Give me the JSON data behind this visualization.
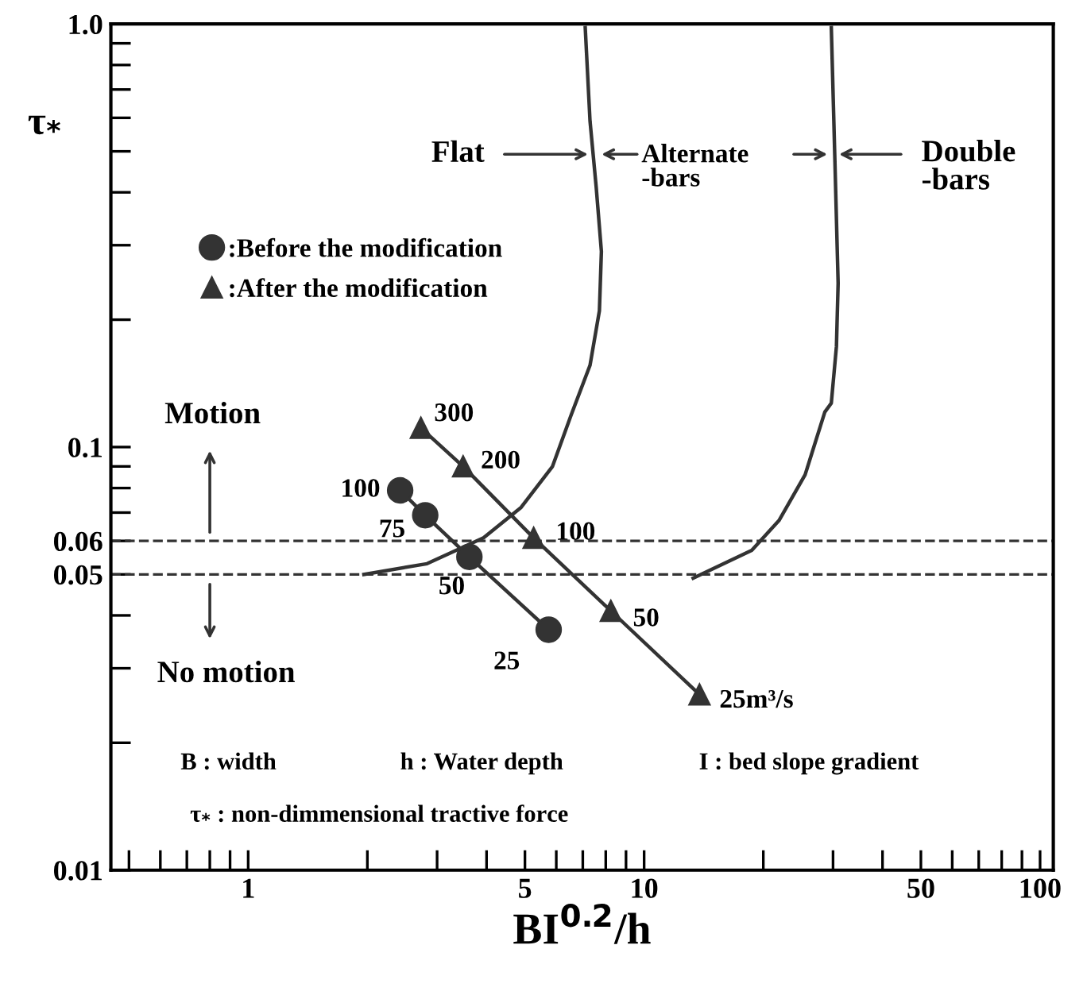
{
  "chart_data": {
    "type": "line",
    "xlabel": "BI$^{0.2}$/h",
    "ylabel": "τ$_{*}$",
    "log": "xy",
    "grid": false,
    "legend": "top left",
    "xlim": [
      0.45,
      108
    ],
    "ylim": [
      0.01,
      1.0
    ],
    "xticks": [
      {
        "value": 0.5,
        "label": null
      },
      {
        "value": 0.6,
        "label": null
      },
      {
        "value": 0.7,
        "label": null
      },
      {
        "value": 0.8,
        "label": null
      },
      {
        "value": 0.9,
        "label": null
      },
      1,
      {
        "value": 2,
        "label": null
      },
      {
        "value": 3,
        "label": null
      },
      {
        "value": 4,
        "label": null
      },
      5,
      {
        "value": 6,
        "label": null
      },
      {
        "value": 7,
        "label": null
      },
      {
        "value": 8,
        "label": null
      },
      {
        "value": 9,
        "label": null
      },
      10,
      {
        "value": 20,
        "label": null
      },
      {
        "value": 30,
        "label": null
      },
      {
        "value": 40,
        "label": null
      },
      50,
      {
        "value": 60,
        "label": null
      },
      {
        "value": 70,
        "label": null
      },
      {
        "value": 80,
        "label": null
      },
      {
        "value": 90,
        "label": null
      },
      100
    ],
    "yticks": [
      0.01,
      {
        "value": 0.02,
        "label": null
      },
      {
        "value": 0.03,
        "label": null
      },
      {
        "value": 0.04,
        "label": null
      },
      0.05,
      0.06,
      {
        "value": 0.07,
        "label": null
      },
      {
        "value": 0.08,
        "label": null
      },
      {
        "value": 0.09,
        "label": null
      },
      0.1,
      {
        "value": 0.2,
        "label": null
      },
      {
        "value": 0.3,
        "label": null
      },
      {
        "value": 0.4,
        "label": null
      },
      {
        "value": 0.5,
        "label": null
      },
      {
        "value": 0.6,
        "label": null
      },
      {
        "value": 0.7,
        "label": null
      },
      {
        "value": 0.8,
        "label": null
      },
      {
        "value": 0.9,
        "label": null
      },
      {
        "value": 1.0,
        "label": "1.0"
      }
    ],
    "series": [
      {
        "name": ":Before the modification",
        "color": "#333333",
        "marker": "circle",
        "x": [
          2.42,
          2.8,
          3.62,
          5.74
        ],
        "values": [
          0.079,
          0.069,
          0.055,
          0.037
        ]
      },
      {
        "name": ":After the modification",
        "color": "#333333",
        "marker": "triangle",
        "x": [
          2.73,
          3.49,
          5.26,
          8.24,
          13.8
        ],
        "values": [
          0.111,
          0.09,
          0.061,
          0.041,
          0.026
        ]
      },
      {
        "color": "#333333",
        "marker": "none",
        "x": [
          7.1,
          7.3,
          7.57,
          7.8,
          7.71,
          7.3,
          6.54,
          5.87,
          4.89,
          3.93,
          2.83,
          1.96
        ],
        "values": [
          0.98,
          0.59,
          0.41,
          0.29,
          0.21,
          0.156,
          0.119,
          0.09,
          0.072,
          0.061,
          0.053,
          0.05
        ]
      },
      {
        "color": "#333333",
        "marker": "none",
        "x": [
          29.7,
          30.3,
          30.9,
          30.6,
          29.7,
          28.6,
          25.5,
          21.9,
          18.7,
          13.3
        ],
        "values": [
          0.98,
          0.49,
          0.244,
          0.173,
          0.127,
          0.121,
          0.086,
          0.067,
          0.057,
          0.049
        ]
      }
    ],
    "ref_lines": [
      {
        "axis": "y",
        "value": 0.06,
        "line_style": "dashed",
        "color": "#333333"
      },
      {
        "axis": "y",
        "value": 0.05,
        "line_style": "dashed",
        "color": "#333333"
      }
    ],
    "annotations": [
      "Flat",
      "Alternate\n-bars",
      "Double\n-bars",
      "Motion",
      "No motion",
      "B : width",
      "h : Water depth",
      "I : bed slope gradient",
      "τ$_{*}$ : non-dimmensional tractive force",
      {
        "text": "300",
        "x": 2.73,
        "y": 0.111
      },
      {
        "text": "200",
        "x": 3.49,
        "y": 0.09
      },
      {
        "text": "100",
        "x": 5.26,
        "y": 0.061
      },
      {
        "text": "50",
        "x": 8.24,
        "y": 0.041
      },
      {
        "text": "25m³/s",
        "x": 13.8,
        "y": 0.026
      },
      {
        "text": "100",
        "x": 2.42,
        "y": 0.079
      },
      {
        "text": "75",
        "x": 2.8,
        "y": 0.069
      },
      {
        "text": "50",
        "x": 3.62,
        "y": 0.055
      },
      {
        "text": "25",
        "x": 5.74,
        "y": 0.037
      }
    ]
  }
}
